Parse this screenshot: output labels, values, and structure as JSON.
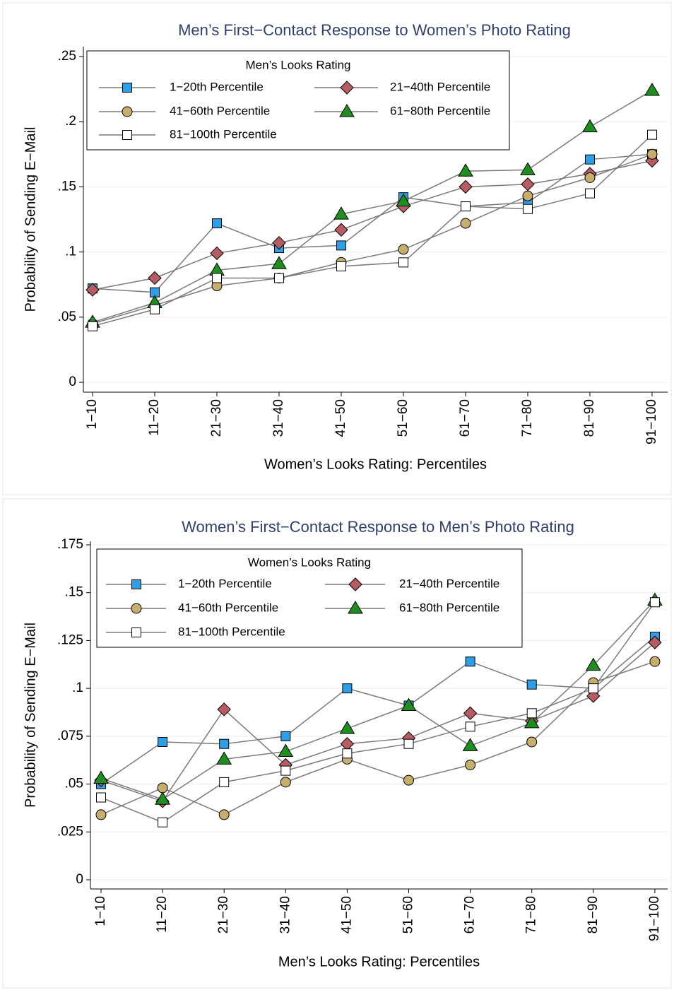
{
  "chart_data": [
    {
      "type": "line",
      "title": "Men’s First−Contact Response to Women’s Photo Rating",
      "x_label": "Women’s Looks Rating: Percentiles",
      "y_label": "Probability of Sending E−Mail",
      "legend_title": "Men’s Looks Rating",
      "legend_position": "upper left",
      "grid": true,
      "categories": [
        "1−10",
        "11−20",
        "21−30",
        "31−40",
        "41−50",
        "51−60",
        "61−70",
        "71−80",
        "81−90",
        "91−100"
      ],
      "ylim": [
        0,
        0.25
      ],
      "yticks": [
        0,
        {
          "value": 0.05,
          "label": ".05"
        },
        {
          "value": 0.1,
          "label": ".1"
        },
        {
          "value": 0.15,
          "label": ".15"
        },
        {
          "value": 0.2,
          "label": ".2"
        },
        {
          "value": 0.25,
          "label": ".25"
        }
      ],
      "series": [
        {
          "name": "1−20th Percentile",
          "color": "#2c9fe6",
          "marker": "square",
          "values": [
            0.072,
            0.069,
            0.122,
            0.103,
            0.105,
            0.142,
            0.135,
            0.138,
            0.171,
            0.175
          ]
        },
        {
          "name": "21−40th Percentile",
          "color": "#b85c64",
          "marker": "diamond",
          "values": [
            0.071,
            0.08,
            0.099,
            0.107,
            0.117,
            0.135,
            0.15,
            0.152,
            0.16,
            0.17
          ]
        },
        {
          "name": "41−60th Percentile",
          "color": "#c8ae6c",
          "marker": "circle",
          "values": [
            0.045,
            0.059,
            0.074,
            0.08,
            0.092,
            0.102,
            0.122,
            0.143,
            0.157,
            0.175
          ]
        },
        {
          "name": "61−80th Percentile",
          "color": "#1e8f1e",
          "marker": "triangle",
          "values": [
            0.046,
            0.061,
            0.086,
            0.091,
            0.129,
            0.139,
            0.162,
            0.163,
            0.196,
            0.224
          ]
        },
        {
          "name": "81−100th Percentile",
          "color": "#ffffff",
          "marker": "square",
          "values": [
            0.043,
            0.056,
            0.08,
            0.08,
            0.089,
            0.092,
            0.135,
            0.133,
            0.145,
            0.19
          ]
        }
      ]
    },
    {
      "type": "line",
      "title": "Women’s First−Contact Response to Men’s Photo Rating",
      "x_label": "Men’s Looks Rating: Percentiles",
      "y_label": "Probability of Sending E−Mail",
      "legend_title": "Women’s Looks Rating",
      "legend_position": "upper left",
      "grid": true,
      "categories": [
        "1−10",
        "11−20",
        "21−30",
        "31−40",
        "41−50",
        "51−60",
        "61−70",
        "71−80",
        "81−90",
        "91−100"
      ],
      "ylim": [
        0,
        0.175
      ],
      "yticks": [
        0,
        {
          "value": 0.025,
          "label": ".025"
        },
        {
          "value": 0.05,
          "label": ".05"
        },
        {
          "value": 0.075,
          "label": ".075"
        },
        {
          "value": 0.1,
          "label": ".1"
        },
        {
          "value": 0.125,
          "label": ".125"
        },
        {
          "value": 0.15,
          "label": ".15"
        },
        {
          "value": 0.175,
          "label": ".175"
        }
      ],
      "series": [
        {
          "name": "1−20th Percentile",
          "color": "#2c9fe6",
          "marker": "square",
          "values": [
            0.05,
            0.072,
            0.071,
            0.075,
            0.1,
            0.091,
            0.114,
            0.102,
            0.1,
            0.127
          ]
        },
        {
          "name": "21−40th Percentile",
          "color": "#b85c64",
          "marker": "diamond",
          "values": [
            0.052,
            0.041,
            0.089,
            0.06,
            0.071,
            0.074,
            0.087,
            0.083,
            0.096,
            0.124
          ]
        },
        {
          "name": "41−60th Percentile",
          "color": "#c8ae6c",
          "marker": "circle",
          "values": [
            0.034,
            0.048,
            0.034,
            0.051,
            0.063,
            0.052,
            0.06,
            0.072,
            0.103,
            0.114
          ]
        },
        {
          "name": "61−80th Percentile",
          "color": "#1e8f1e",
          "marker": "triangle",
          "values": [
            0.053,
            0.042,
            0.063,
            0.067,
            0.079,
            0.091,
            0.07,
            0.082,
            0.112,
            0.146
          ]
        },
        {
          "name": "81−100th Percentile",
          "color": "#ffffff",
          "marker": "square",
          "values": [
            0.043,
            0.03,
            0.051,
            0.057,
            0.066,
            0.071,
            0.08,
            0.087,
            0.1,
            0.145
          ]
        }
      ]
    }
  ]
}
